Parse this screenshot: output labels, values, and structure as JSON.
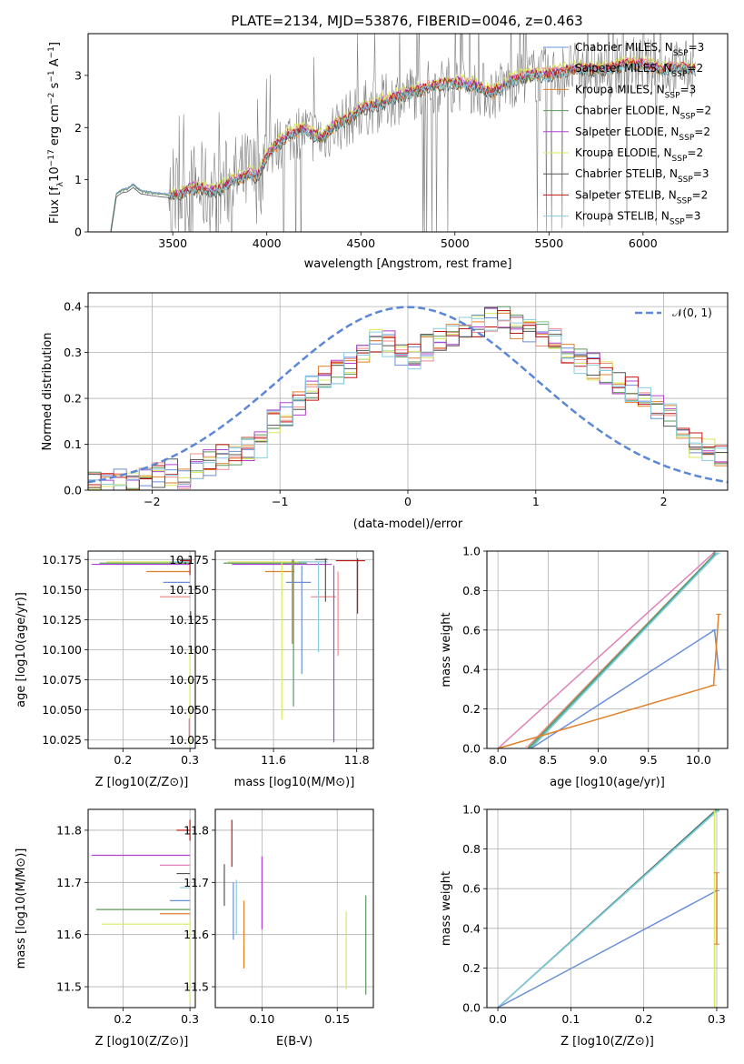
{
  "figure": {
    "title": "PLATE=2134, MJD=53876, FIBERID=0046, z=0.463"
  },
  "colors": {
    "Chabrier MILES": "#6a8fd8",
    "Salpeter MILES": "#f08a8a",
    "Kroupa MILES": "#e0802a",
    "Chabrier ELODIE": "#5a9a5a",
    "Salpeter ELODIE": "#b040d0",
    "Kroupa ELODIE": "#d8e860",
    "Chabrier STELIB": "#555555",
    "Salpeter STELIB": "#c01818",
    "Kroupa STELIB": "#88cce0",
    "pink": "#e080b8",
    "teal": "#40b0a0",
    "data": "#808080",
    "normal": "#5b87d6"
  },
  "chart_data": [
    {
      "id": "spectrum",
      "type": "line",
      "title": "PLATE=2134, MJD=53876, FIBERID=0046, z=0.463",
      "xlabel": "wavelength [Angstrom, rest frame]",
      "ylabel": "Flux [f_λ 10^-17 erg cm^-2 s^-1 A^-1]",
      "xlim": [
        3050,
        6450
      ],
      "ylim": [
        0,
        3.8
      ],
      "xticks": [
        3500,
        4000,
        4500,
        5000,
        5500,
        6000
      ],
      "yticks": [
        0,
        1,
        2,
        3
      ],
      "grid": false,
      "legend_position": "top-right",
      "model_wavelength": [
        3170,
        3200,
        3230,
        3260,
        3290,
        3330,
        3380,
        3440,
        3500,
        3550,
        3600,
        3650,
        3700,
        3750,
        3800,
        3850,
        3900,
        3950,
        4000,
        4050,
        4100,
        4150,
        4200,
        4250,
        4300,
        4350,
        4400,
        4450,
        4500,
        4600,
        4700,
        4800,
        4900,
        5000,
        5100,
        5200,
        5300,
        5400,
        5500,
        5600,
        5700,
        5800,
        5900,
        6000,
        6100,
        6200,
        6300
      ],
      "model_flux": [
        0,
        0.72,
        0.8,
        0.82,
        0.9,
        0.78,
        0.75,
        0.72,
        0.7,
        0.74,
        0.82,
        0.85,
        0.75,
        0.8,
        0.95,
        1.0,
        1.1,
        1.05,
        1.45,
        1.65,
        1.8,
        1.9,
        1.95,
        1.85,
        1.8,
        2.0,
        2.1,
        2.2,
        2.35,
        2.45,
        2.6,
        2.7,
        2.8,
        2.85,
        2.8,
        2.65,
        2.9,
        3.0,
        3.0,
        3.1,
        3.1,
        3.1,
        3.2,
        3.2,
        3.1,
        3.15,
        3.1
      ],
      "series": [
        {
          "name": "Chabrier MILES, N_SSP=3",
          "offset": 0.02
        },
        {
          "name": "Salpeter MILES, N_SSP=2",
          "offset": 0.06
        },
        {
          "name": "Kroupa MILES, N_SSP=3",
          "offset": -0.03
        },
        {
          "name": "Chabrier ELODIE, N_SSP=2",
          "offset": 0.0
        },
        {
          "name": "Salpeter ELODIE, N_SSP=2",
          "offset": 0.05
        },
        {
          "name": "Kroupa ELODIE, N_SSP=2",
          "offset": 0.1
        },
        {
          "name": "Chabrier STELIB, N_SSP=3",
          "offset": -0.05
        },
        {
          "name": "Salpeter STELIB, N_SSP=2",
          "offset": 0.03
        },
        {
          "name": "Kroupa STELIB, N_SSP=3",
          "offset": -0.02
        }
      ]
    },
    {
      "id": "residuals",
      "type": "line",
      "xlabel": "(data-model)/error",
      "ylabel": "Normed distribution",
      "xlim": [
        -2.5,
        2.5
      ],
      "ylim": [
        0,
        0.43
      ],
      "xticks": [
        -2,
        -1,
        0,
        1,
        2
      ],
      "yticks": [
        0.0,
        0.1,
        0.2,
        0.3,
        0.4
      ],
      "grid": true,
      "legend": [
        "N(0,1)"
      ],
      "legend_position": "top-right",
      "bins_x": [
        -2.5,
        -2.4,
        -2.3,
        -2.2,
        -2.1,
        -2.0,
        -1.9,
        -1.8,
        -1.7,
        -1.6,
        -1.5,
        -1.4,
        -1.3,
        -1.2,
        -1.1,
        -1.0,
        -0.9,
        -0.8,
        -0.7,
        -0.6,
        -0.5,
        -0.4,
        -0.3,
        -0.2,
        -0.1,
        0.0,
        0.1,
        0.2,
        0.3,
        0.4,
        0.5,
        0.6,
        0.7,
        0.8,
        0.9,
        1.0,
        1.1,
        1.2,
        1.3,
        1.4,
        1.5,
        1.6,
        1.7,
        1.8,
        1.9,
        2.0,
        2.1,
        2.2,
        2.3,
        2.4
      ],
      "mean_hist": [
        0.015,
        0.018,
        0.02,
        0.025,
        0.03,
        0.035,
        0.04,
        0.03,
        0.05,
        0.06,
        0.07,
        0.08,
        0.09,
        0.1,
        0.15,
        0.17,
        0.19,
        0.22,
        0.24,
        0.26,
        0.27,
        0.29,
        0.33,
        0.32,
        0.3,
        0.29,
        0.31,
        0.33,
        0.34,
        0.35,
        0.36,
        0.37,
        0.38,
        0.36,
        0.35,
        0.34,
        0.33,
        0.3,
        0.28,
        0.27,
        0.25,
        0.23,
        0.22,
        0.2,
        0.18,
        0.16,
        0.13,
        0.1,
        0.09,
        0.07
      ]
    },
    {
      "id": "age-vs-Z",
      "type": "scatter",
      "xlabel": "Z [log10(Z/Z⊙)]",
      "ylabel": "age  [log10(age/yr)]",
      "xlim": [
        0.148,
        0.308
      ],
      "ylim": [
        10.018,
        10.182
      ],
      "xticks": [
        0.2,
        0.3
      ],
      "yticks": [
        10.025,
        10.05,
        10.075,
        10.1,
        10.125,
        10.15,
        10.175
      ],
      "grid": true,
      "hlines": [
        {
          "c": "Chabrier MILES",
          "x1": 0.26,
          "y": 10.156
        },
        {
          "c": "Salpeter MILES",
          "x1": 0.255,
          "y": 10.144
        },
        {
          "c": "Kroupa MILES",
          "x1": 0.235,
          "y": 10.165
        },
        {
          "c": "Chabrier ELODIE",
          "x1": 0.165,
          "y": 10.172
        },
        {
          "c": "Salpeter ELODIE",
          "x1": 0.153,
          "y": 10.171
        },
        {
          "c": "Kroupa ELODIE",
          "x1": 0.175,
          "y": 10.173
        },
        {
          "c": "Chabrier STELIB",
          "x1": 0.28,
          "y": 10.175
        },
        {
          "c": "Salpeter STELIB",
          "x1": 0.285,
          "y": 10.174
        },
        {
          "c": "Kroupa STELIB",
          "x1": 0.27,
          "y": 10.173
        }
      ],
      "vlines": [
        {
          "c": "Salpeter ELODIE",
          "x": 0.299,
          "y0": 10.027,
          "y1": 10.043
        },
        {
          "c": "Kroupa ELODIE",
          "x": 0.3,
          "y0": 10.02,
          "y1": 10.1
        },
        {
          "c": "Chabrier STELIB",
          "x": 0.301,
          "y0": 10.125,
          "y1": 10.132
        },
        {
          "c": "Salpeter STELIB",
          "x": 0.3,
          "y0": 10.162,
          "y1": 10.175
        }
      ]
    },
    {
      "id": "age-vs-mass",
      "type": "scatter",
      "xlabel": "mass [log10(M/M⊙)]",
      "ylim": [
        10.018,
        10.182
      ],
      "xlim": [
        11.46,
        11.84
      ],
      "xticks": [
        11.6,
        11.8
      ],
      "yticks": [
        10.025,
        10.05,
        10.075,
        10.1,
        10.125,
        10.15,
        10.175
      ],
      "grid": true,
      "hlines": [
        {
          "c": "Chabrier MILES",
          "x0": 11.63,
          "x1": 11.69,
          "y": 10.156
        },
        {
          "c": "Salpeter MILES",
          "x0": 11.69,
          "x1": 11.75,
          "y": 10.144
        },
        {
          "c": "Kroupa MILES",
          "x0": 11.58,
          "x1": 11.65,
          "y": 10.165
        },
        {
          "c": "Chabrier ELODIE",
          "x0": 11.48,
          "x1": 11.68,
          "y": 10.172
        },
        {
          "c": "Salpeter ELODIE",
          "x0": 11.5,
          "x1": 11.74,
          "y": 10.171
        },
        {
          "c": "Kroupa ELODIE",
          "x0": 11.49,
          "x1": 11.7,
          "y": 10.173
        },
        {
          "c": "Chabrier STELIB",
          "x0": 11.7,
          "x1": 11.73,
          "y": 10.175
        },
        {
          "c": "Salpeter STELIB",
          "x0": 11.75,
          "x1": 11.82,
          "y": 10.174
        },
        {
          "c": "Kroupa STELIB",
          "x0": 11.66,
          "x1": 11.73,
          "y": 10.173
        }
      ],
      "vlines": [
        {
          "c": "Chabrier MILES",
          "x": 11.668,
          "y0": 10.08,
          "y1": 10.17
        },
        {
          "c": "Salpeter MILES",
          "x": 11.755,
          "y0": 10.095,
          "y1": 10.165
        },
        {
          "c": "Kroupa MILES",
          "x": 11.645,
          "y0": 10.105,
          "y1": 10.175
        },
        {
          "c": "Chabrier ELODIE",
          "x": 11.648,
          "y0": 10.053,
          "y1": 10.175
        },
        {
          "c": "Salpeter ELODIE",
          "x": 11.745,
          "y0": 10.023,
          "y1": 10.17
        },
        {
          "c": "Kroupa ELODIE",
          "x": 11.62,
          "y0": 10.042,
          "y1": 10.173
        },
        {
          "c": "Chabrier STELIB",
          "x": 11.725,
          "y0": 10.14,
          "y1": 10.176
        },
        {
          "c": "Salpeter STELIB",
          "x": 11.802,
          "y0": 10.13,
          "y1": 10.176
        },
        {
          "c": "Kroupa STELIB",
          "x": 11.708,
          "y0": 10.098,
          "y1": 10.173
        }
      ]
    },
    {
      "id": "weight-vs-age",
      "type": "line",
      "xlabel": "age  [log10(age/yr)]",
      "ylabel": "mass weight",
      "xlim": [
        7.89,
        10.29
      ],
      "ylim": [
        0,
        1
      ],
      "xticks": [
        8.0,
        8.5,
        9.0,
        9.5,
        10.0
      ],
      "yticks": [
        0.0,
        0.2,
        0.4,
        0.6,
        0.8,
        1.0
      ],
      "grid": true,
      "lines": [
        {
          "c": "pink",
          "x": [
            8.0,
            10.17
          ],
          "y": [
            0.0,
            1.0
          ]
        },
        {
          "c": "Salpeter MILES",
          "x": [
            8.3,
            10.17
          ],
          "y": [
            0.01,
            0.99
          ]
        },
        {
          "c": "Chabrier ELODIE",
          "x": [
            8.3,
            10.17
          ],
          "y": [
            0.0,
            0.99
          ]
        },
        {
          "c": "teal",
          "x": [
            8.32,
            10.17
          ],
          "y": [
            0.0,
            0.985
          ]
        },
        {
          "c": "Kroupa STELIB",
          "x": [
            8.33,
            10.19
          ],
          "y": [
            0.0,
            0.99
          ]
        },
        {
          "c": "Chabrier MILES",
          "x": [
            8.33,
            10.16,
            10.2
          ],
          "y": [
            0.0,
            0.6,
            0.4
          ]
        },
        {
          "c": "Kroupa MILES",
          "x": [
            8.0,
            10.15,
            10.2
          ],
          "y": [
            0.0,
            0.32,
            0.68
          ]
        }
      ]
    },
    {
      "id": "mass-vs-Z",
      "type": "scatter",
      "xlabel": "Z [log10(Z/Z⊙)]",
      "ylabel": "mass [log10(M/M⊙)]",
      "xlim": [
        0.148,
        0.308
      ],
      "ylim": [
        11.46,
        11.84
      ],
      "xticks": [
        0.2,
        0.3
      ],
      "yticks": [
        11.5,
        11.6,
        11.7,
        11.8
      ],
      "grid": true,
      "hlines": [
        {
          "c": "Salpeter STELIB",
          "x0": 0.28,
          "y": 11.8
        },
        {
          "c": "Salpeter ELODIE",
          "x0": 0.153,
          "y": 11.752
        },
        {
          "c": "pink",
          "x0": 0.255,
          "y": 11.733
        },
        {
          "c": "Chabrier STELIB",
          "x0": 0.28,
          "y": 11.717
        },
        {
          "c": "Kroupa STELIB",
          "x0": 0.285,
          "y": 11.69
        },
        {
          "c": "Chabrier MILES",
          "x0": 0.27,
          "y": 11.665
        },
        {
          "c": "Chabrier ELODIE",
          "x0": 0.16,
          "y": 11.648
        },
        {
          "c": "Kroupa MILES",
          "x0": 0.255,
          "y": 11.64
        },
        {
          "c": "Kroupa ELODIE",
          "x0": 0.168,
          "y": 11.62
        }
      ],
      "vlines": [
        {
          "c": "Salpeter STELIB",
          "x": 0.3,
          "y0": 11.78,
          "y1": 11.82
        },
        {
          "c": "Kroupa ELODIE",
          "x": 0.3,
          "y0": 11.47,
          "y1": 11.63
        }
      ]
    },
    {
      "id": "mass-vs-EBV",
      "type": "scatter",
      "xlabel": "E(B-V)",
      "xlim": [
        0.069,
        0.174
      ],
      "ylim": [
        11.46,
        11.84
      ],
      "xticks": [
        0.1,
        0.15
      ],
      "yticks": [
        11.5,
        11.6,
        11.7,
        11.8
      ],
      "grid": true,
      "vlines": [
        {
          "c": "Chabrier STELIB",
          "x": 0.075,
          "y0": 11.655,
          "y1": 11.735
        },
        {
          "c": "Salpeter STELIB",
          "x": 0.08,
          "y0": 11.73,
          "y1": 11.82
        },
        {
          "c": "Chabrier MILES",
          "x": 0.081,
          "y0": 11.59,
          "y1": 11.7
        },
        {
          "c": "Kroupa STELIB",
          "x": 0.083,
          "y0": 11.6,
          "y1": 11.705
        },
        {
          "c": "Kroupa MILES",
          "x": 0.088,
          "y0": 11.535,
          "y1": 11.665
        },
        {
          "c": "Salpeter ELODIE",
          "x": 0.1,
          "y0": 11.61,
          "y1": 11.75
        },
        {
          "c": "Kroupa ELODIE",
          "x": 0.156,
          "y0": 11.495,
          "y1": 11.645
        },
        {
          "c": "Chabrier ELODIE",
          "x": 0.169,
          "y0": 11.485,
          "y1": 11.675
        }
      ]
    },
    {
      "id": "weight-vs-Z",
      "type": "line",
      "xlabel": "Z [log10(Z/Z⊙)]",
      "ylabel": "mass weight",
      "xlim": [
        -0.015,
        0.315
      ],
      "ylim": [
        0,
        1
      ],
      "xticks": [
        0.0,
        0.1,
        0.2,
        0.3
      ],
      "yticks": [
        0.0,
        0.2,
        0.4,
        0.6,
        0.8,
        1.0
      ],
      "grid": true,
      "lines": [
        {
          "c": "Chabrier STELIB",
          "x": [
            0.0,
            0.3
          ],
          "y": [
            0.0,
            1.0
          ]
        },
        {
          "c": "teal",
          "x": [
            0.0,
            0.3
          ],
          "y": [
            0.0,
            0.995
          ]
        },
        {
          "c": "Kroupa STELIB",
          "x": [
            0.0,
            0.3
          ],
          "y": [
            0.0,
            0.99
          ]
        },
        {
          "c": "Chabrier MILES",
          "x": [
            0.0,
            0.3
          ],
          "y": [
            0.0,
            0.59
          ]
        },
        {
          "c": "Kroupa ELODIE",
          "x": [
            0.297,
            0.297
          ],
          "y": [
            0.0,
            1.0
          ]
        },
        {
          "c": "Kroupa MILES",
          "x": [
            0.3,
            0.3
          ],
          "y": [
            0.32,
            0.68
          ]
        }
      ]
    }
  ]
}
